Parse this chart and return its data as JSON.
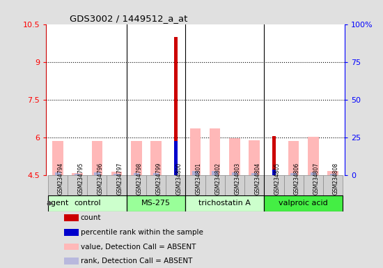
{
  "title": "GDS3002 / 1449512_a_at",
  "samples": [
    "GSM234794",
    "GSM234795",
    "GSM234796",
    "GSM234797",
    "GSM234798",
    "GSM234799",
    "GSM234800",
    "GSM234801",
    "GSM234802",
    "GSM234803",
    "GSM234804",
    "GSM234805",
    "GSM234806",
    "GSM234807",
    "GSM234808"
  ],
  "red_values": [
    0,
    0,
    0,
    0,
    0,
    0,
    10.0,
    0,
    0,
    0,
    0,
    6.05,
    0,
    0,
    0
  ],
  "blue_values": [
    0,
    0,
    0,
    0,
    0,
    0,
    5.87,
    0,
    0,
    0,
    0,
    4.72,
    0,
    0,
    0
  ],
  "pink_values": [
    5.85,
    4.6,
    5.85,
    4.65,
    5.85,
    5.85,
    0,
    6.35,
    6.35,
    5.98,
    5.9,
    0,
    5.85,
    6.02,
    4.68
  ],
  "lightblue_values": [
    4.62,
    4.55,
    4.62,
    4.56,
    4.6,
    4.6,
    0,
    4.68,
    4.68,
    4.62,
    4.6,
    0,
    4.6,
    4.63,
    4.56
  ],
  "groups": [
    {
      "label": "control",
      "start": 0,
      "end": 3,
      "color": "#ccffcc"
    },
    {
      "label": "MS-275",
      "start": 4,
      "end": 6,
      "color": "#99ff99"
    },
    {
      "label": "trichostatin A",
      "start": 7,
      "end": 10,
      "color": "#ccffcc"
    },
    {
      "label": "valproic acid",
      "start": 11,
      "end": 14,
      "color": "#44ee44"
    }
  ],
  "ylim_left": [
    4.5,
    10.5
  ],
  "ylim_right": [
    0,
    100
  ],
  "yticks_left": [
    4.5,
    6.0,
    7.5,
    9.0,
    10.5
  ],
  "yticks_right": [
    0,
    25,
    50,
    75,
    100
  ],
  "yticklabels_left": [
    "4.5",
    "6",
    "7.5",
    "9",
    "10.5"
  ],
  "yticklabels_right": [
    "0",
    "25",
    "50",
    "75",
    "100%"
  ],
  "background_color": "#e0e0e0",
  "plot_bg": "#ffffff",
  "legend_items": [
    {
      "color": "#cc0000",
      "label": "count"
    },
    {
      "color": "#0000cc",
      "label": "percentile rank within the sample"
    },
    {
      "color": "#ffb8b8",
      "label": "value, Detection Call = ABSENT"
    },
    {
      "color": "#b8b8dd",
      "label": "rank, Detection Call = ABSENT"
    }
  ],
  "agent_label": "agent",
  "dotted_lines": [
    6.0,
    7.5,
    9.0
  ],
  "group_sep_color": "#000000",
  "xticklabel_bg": "#d0d0d0"
}
